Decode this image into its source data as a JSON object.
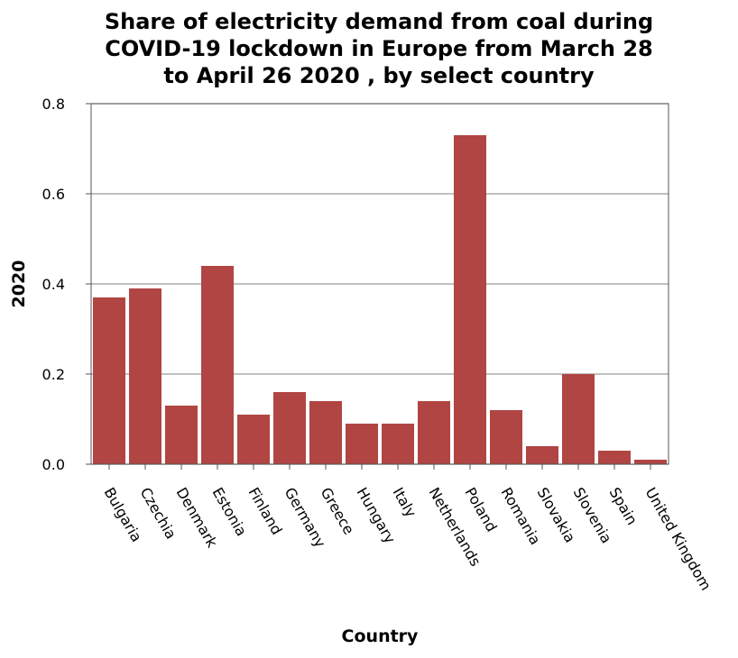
{
  "chart_data": {
    "type": "bar",
    "title": "Share of electricity demand from coal during COVID-19 lockdown in Europe from March 28 to April 26 2020 , by select country",
    "title_lines": [
      "Share of electricity demand from coal during",
      "COVID-19 lockdown in Europe from March 28",
      "to April 26 2020 , by select country"
    ],
    "xlabel": "Country",
    "ylabel": "2020",
    "categories": [
      "Bulgaria",
      "Czechia",
      "Denmark",
      "Estonia",
      "Finland",
      "Germany",
      "Greece",
      "Hungary",
      "Italy",
      "Netherlands",
      "Poland",
      "Romania",
      "Slovakia",
      "Slovenia",
      "Spain",
      "United Kingdom"
    ],
    "series": [
      {
        "values": [
          0.37,
          0.39,
          0.13,
          0.44,
          0.11,
          0.16,
          0.14,
          0.09,
          0.09,
          0.14,
          0.73,
          0.12,
          0.04,
          0.2,
          0.03,
          0.01
        ]
      }
    ],
    "ylim": [
      0,
      0.8
    ],
    "yticks": [
      0.0,
      0.2,
      0.4,
      0.6,
      0.8
    ],
    "ytick_labels": [
      "0.0",
      "0.2",
      "0.4",
      "0.6",
      "0.8"
    ],
    "grid": true,
    "legend": "none",
    "bar_color": "#b04543"
  }
}
